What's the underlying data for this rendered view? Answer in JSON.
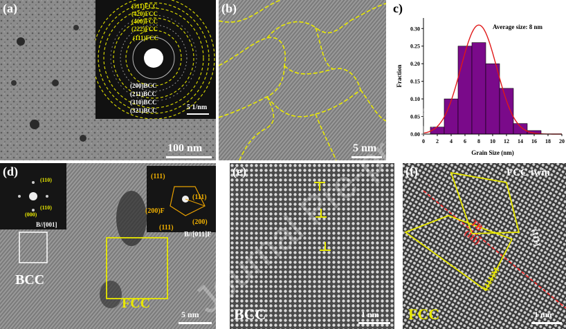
{
  "figure": {
    "watermark": "Journal Pre-proof",
    "a": {
      "label": "(a)",
      "scale_bar": "100 nm",
      "inset_scale": "5 1/nm",
      "fcc_rings": [
        "(511)FCC",
        "(420)FCC",
        "(400)FCC",
        "(222)FCC",
        "(111)FCC"
      ],
      "bcc_rings": [
        "(200)BCC",
        "(211)BCC",
        "(310)BCC",
        "(321)BCC"
      ]
    },
    "b": {
      "label": "(b)",
      "scale_bar": "5 nm"
    },
    "c": {
      "label": "c)"
    },
    "d": {
      "label": "(d)",
      "scale_bar": "5 nm",
      "bcc_box": "BCC",
      "fcc_box": "FCC",
      "left_inset": {
        "spots": [
          "(110)",
          "(110)",
          "(000)"
        ],
        "zone": "B//[001]"
      },
      "right_inset": {
        "spots": [
          "(111)",
          "(111)",
          "(200)F",
          "(111)",
          "(200)"
        ],
        "zone": "B//[011]F"
      }
    },
    "e": {
      "label": "(e)",
      "tag": "BCC",
      "scale_bar": "1 nm",
      "dislocation": "T"
    },
    "f": {
      "label": "(f)",
      "tag": "FCC",
      "scale_bar": "1 nm",
      "twin_label": "FCC twin",
      "tb": "TB",
      "plane_1": "(111)",
      "plane_2": "(111)",
      "plane_m": "(111)M"
    }
  },
  "chart_data": {
    "type": "bar",
    "title": "Average size: 8 nm",
    "xlabel": "Grain Size (nm)",
    "ylabel": "Fraction",
    "x": [
      2,
      4,
      6,
      8,
      10,
      12,
      14,
      16
    ],
    "values": [
      0.02,
      0.1,
      0.25,
      0.26,
      0.2,
      0.13,
      0.03,
      0.01
    ],
    "xlim": [
      0,
      20
    ],
    "ylim": [
      0,
      0.33
    ],
    "xticks": [
      "0",
      "2",
      "4",
      "6",
      "8",
      "10",
      "12",
      "14",
      "16",
      "18",
      "20"
    ],
    "yticks": [
      "0.00",
      "0.05",
      "0.10",
      "0.15",
      "0.20",
      "0.25",
      "0.30"
    ],
    "fit": {
      "type": "gaussian",
      "mean": 8,
      "peak": 0.31,
      "sigma": 2.6
    },
    "bar_color": "#7a0a8a",
    "fit_color": "#e01818"
  }
}
